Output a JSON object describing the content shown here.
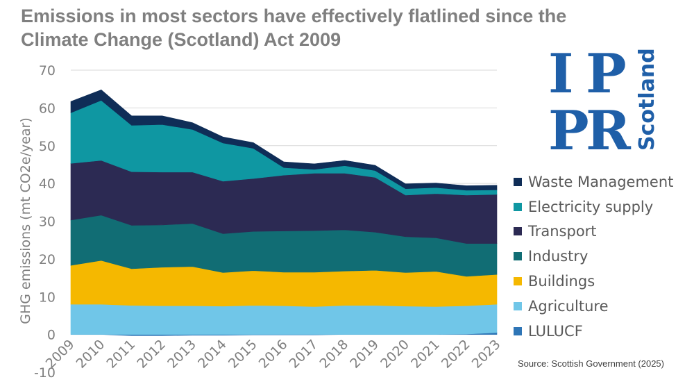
{
  "title_lines": [
    "Emissions in most sectors have effectively flatlined since the",
    "Climate Change (Scotland) Act 2009"
  ],
  "source": "Source: Scottish Government (2025)",
  "logo": {
    "letters": [
      "I",
      "P",
      "P",
      "R"
    ],
    "word": "Scotland",
    "color": "#1f5fa8"
  },
  "chart_data": {
    "type": "area",
    "stacked": true,
    "title": "Emissions in most sectors have effectively flatlined since the Climate Change (Scotland) Act 2009",
    "xlabel": "",
    "ylabel": "GHG emissions (mt CO2e/year)",
    "x": [
      "2009",
      "2010",
      "2011",
      "2012",
      "2013",
      "2014",
      "2015",
      "2016",
      "2017",
      "2018",
      "2019",
      "2020",
      "2021",
      "2022",
      "2023"
    ],
    "ylim": [
      -10,
      70
    ],
    "yticks": [
      "-10",
      "0",
      "10",
      "20",
      "30",
      "40",
      "50",
      "60",
      "70"
    ],
    "grid": true,
    "legend_position": "right",
    "series": [
      {
        "name": "LULUCF",
        "color": "#2e75b6",
        "values": [
          0,
          0,
          -0.3,
          -0.3,
          -0.2,
          -0.2,
          -0.1,
          -0.1,
          -0.1,
          0,
          0,
          0,
          0,
          0.1,
          0.5
        ]
      },
      {
        "name": "Agriculture",
        "color": "#70c6e8",
        "values": [
          8.0,
          8.0,
          7.7,
          7.6,
          7.6,
          7.5,
          7.7,
          7.6,
          7.4,
          7.7,
          7.7,
          7.5,
          7.4,
          7.5,
          7.5
        ]
      },
      {
        "name": "Buildings",
        "color": "#f5b800",
        "values": [
          10.3,
          11.6,
          9.7,
          10.2,
          10.4,
          8.9,
          9.2,
          8.9,
          9.1,
          9.1,
          9.3,
          8.9,
          9.3,
          7.8,
          7.9
        ]
      },
      {
        "name": "Industry",
        "color": "#116d74",
        "values": [
          12.0,
          12.0,
          11.5,
          11.2,
          11.4,
          10.3,
          10.4,
          10.9,
          11.0,
          10.9,
          10.1,
          9.5,
          8.9,
          8.7,
          8.2
        ]
      },
      {
        "name": "Transport",
        "color": "#2c2a53",
        "values": [
          15.0,
          14.5,
          14.2,
          14.0,
          13.6,
          13.9,
          14.0,
          14.8,
          15.2,
          15.0,
          14.5,
          11.0,
          11.7,
          12.8,
          13.0
        ]
      },
      {
        "name": "Electricity supply",
        "color": "#0f97a2",
        "values": [
          13.4,
          15.9,
          12.3,
          12.6,
          11.3,
          10.1,
          8.0,
          2.0,
          1.0,
          2.0,
          1.8,
          1.7,
          1.6,
          1.3,
          1.2
        ]
      },
      {
        "name": "Waste Management",
        "color": "#0f2d57",
        "values": [
          3.0,
          2.8,
          2.5,
          2.3,
          1.8,
          1.6,
          1.5,
          1.5,
          1.5,
          1.4,
          1.4,
          1.3,
          1.2,
          1.2,
          1.2
        ]
      }
    ]
  }
}
